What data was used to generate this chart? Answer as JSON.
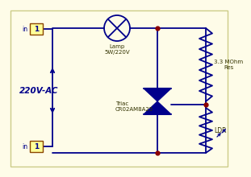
{
  "bg_color": "#FEFCE8",
  "line_color": "#00008B",
  "dot_color": "#8B0000",
  "label_220v": "220V-AC",
  "label_lamp": "Lamp\n5W/220V",
  "label_res": "3.3 MOhm\nRes",
  "label_triac": "Triac\nCR02AM8A25",
  "label_ldr": "LDR",
  "border_color": "#CCCC88",
  "term_fill": "#FFFF99",
  "term_edge": "#8B4500"
}
